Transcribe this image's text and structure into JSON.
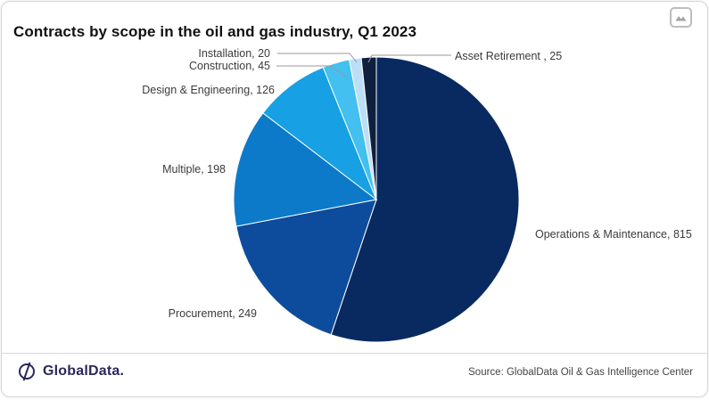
{
  "header": {
    "title": "Contracts by scope in the oil and gas industry, Q1 2023",
    "corner_icon": "image-chart-icon"
  },
  "chart_data": {
    "type": "pie",
    "title": "Contracts by scope in the oil and gas industry, Q1 2023",
    "total": 1478,
    "start_angle_deg": 0,
    "direction": "clockwise",
    "legend_position": "none",
    "labels_style": "outside-with-leader-lines",
    "slices": [
      {
        "name": "Operations & Maintenance",
        "value": 815,
        "label": "Operations & Maintenance, 815",
        "color": "#082A60"
      },
      {
        "name": "Procurement",
        "value": 249,
        "label": "Procurement, 249",
        "color": "#0D4C9C"
      },
      {
        "name": "Multiple",
        "value": 198,
        "label": "Multiple, 198",
        "color": "#0C7AC9"
      },
      {
        "name": "Design & Engineering",
        "value": 126,
        "label": "Design & Engineering, 126",
        "color": "#17A0E4"
      },
      {
        "name": "Construction",
        "value": 45,
        "label": "Construction, 45",
        "color": "#43BFF0"
      },
      {
        "name": "Installation",
        "value": 20,
        "label": "Installation, 20",
        "color": "#BCDFF6"
      },
      {
        "name": "Asset Retirement",
        "value": 25,
        "label": "Asset Retirement , 25",
        "color": "#0F1F3E"
      }
    ]
  },
  "footer": {
    "logo_text": "GlobalData.",
    "source": "Source: GlobalData Oil & Gas Intelligence Center"
  }
}
